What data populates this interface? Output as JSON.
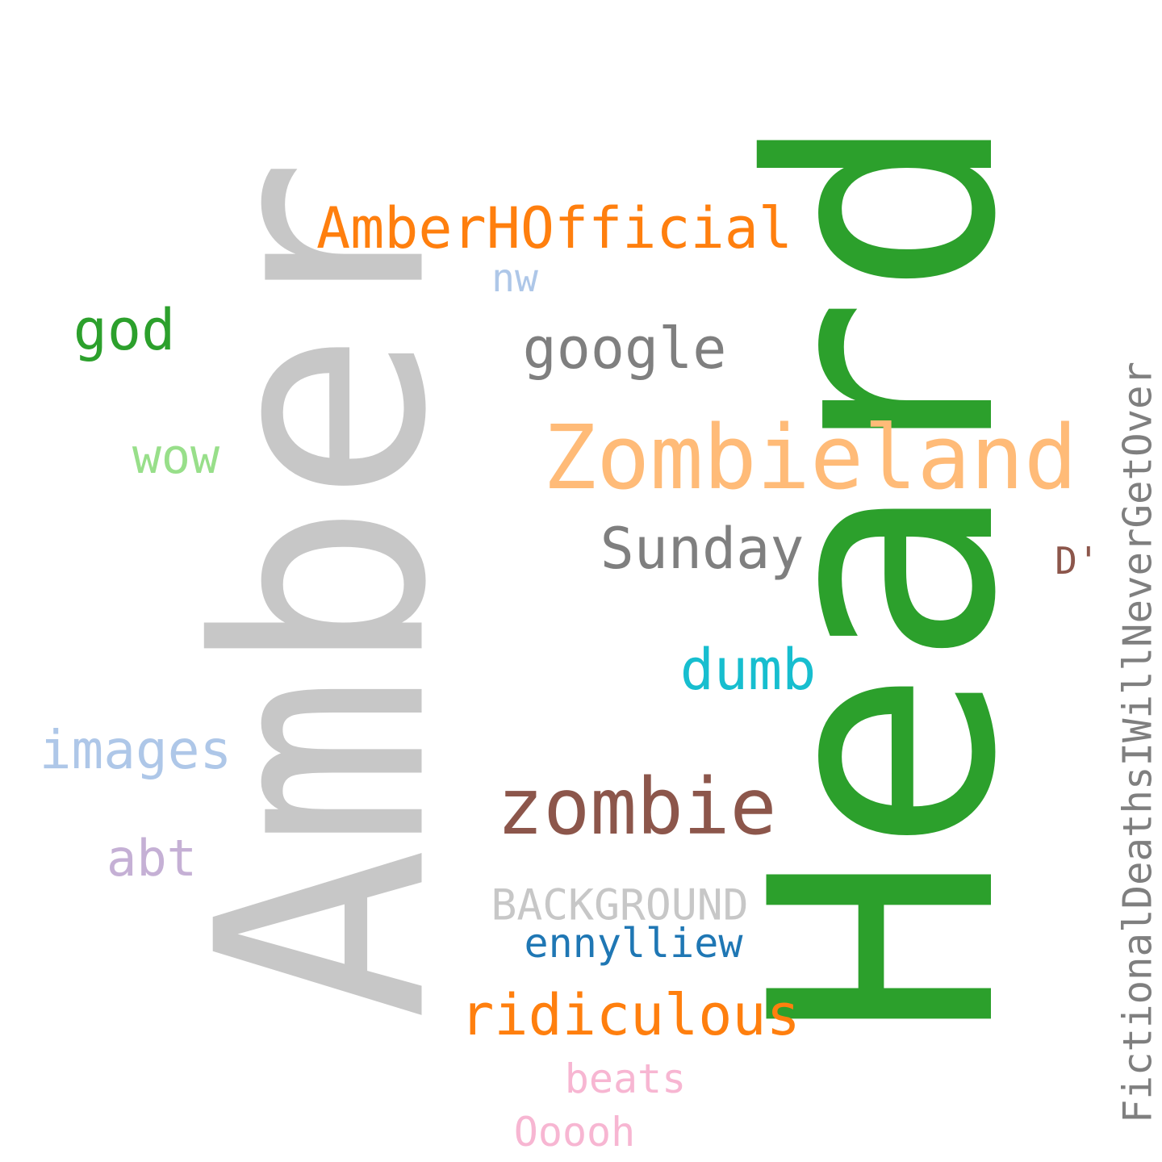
{
  "words": [
    {
      "id": "amber",
      "text": "Amber",
      "color": "#c7c7c7",
      "rotated": true
    },
    {
      "id": "heard",
      "text": "Heard",
      "color": "#2ca02c",
      "rotated": true
    },
    {
      "id": "zombieland",
      "text": "Zombieland",
      "color": "#ffbb78",
      "rotated": false
    },
    {
      "id": "amberhofficial",
      "text": "AmberHOfficial",
      "color": "#ff7f0e",
      "rotated": false
    },
    {
      "id": "zombie",
      "text": "zombie",
      "color": "#8c564b",
      "rotated": false
    },
    {
      "id": "google",
      "text": "google",
      "color": "#7f7f7f",
      "rotated": false
    },
    {
      "id": "sunday",
      "text": "Sunday",
      "color": "#7f7f7f",
      "rotated": false
    },
    {
      "id": "ridiculous",
      "text": "ridiculous",
      "color": "#ff7f0e",
      "rotated": false
    },
    {
      "id": "dumb",
      "text": "dumb",
      "color": "#17becf",
      "rotated": false
    },
    {
      "id": "god",
      "text": "god",
      "color": "#2ca02c",
      "rotated": false
    },
    {
      "id": "images",
      "text": "images",
      "color": "#aec7e8",
      "rotated": false
    },
    {
      "id": "wow",
      "text": "wow",
      "color": "#98df8a",
      "rotated": false
    },
    {
      "id": "abt",
      "text": "abt",
      "color": "#c5b0d5",
      "rotated": false
    },
    {
      "id": "background",
      "text": "BACKGROUND",
      "color": "#c7c7c7",
      "rotated": false
    },
    {
      "id": "ennylliew",
      "text": "ennylliew",
      "color": "#1f77b4",
      "rotated": false
    },
    {
      "id": "beats",
      "text": "beats",
      "color": "#f7b6d2",
      "rotated": false
    },
    {
      "id": "ooooh",
      "text": "Ooooh",
      "color": "#f7b6d2",
      "rotated": false
    },
    {
      "id": "nw",
      "text": "nw",
      "color": "#aec7e8",
      "rotated": false
    },
    {
      "id": "d-apos",
      "text": "D'",
      "color": "#8c564b",
      "rotated": false
    },
    {
      "id": "fictional",
      "text": "FictionalDeathsIWillNeverGetOver",
      "color": "#7f7f7f",
      "rotated": true
    }
  ]
}
